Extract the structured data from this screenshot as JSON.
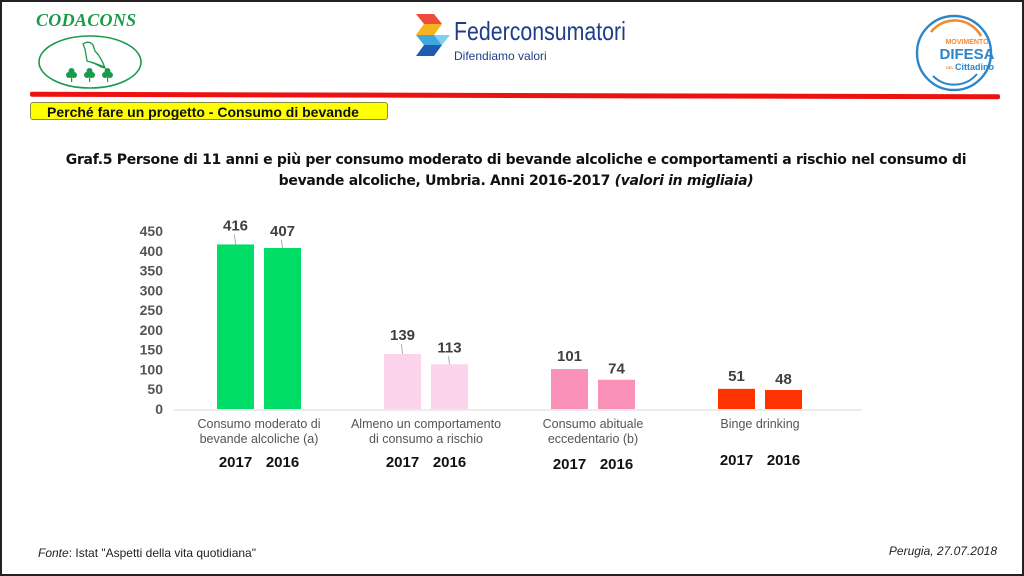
{
  "header": {
    "codacons_title": "CODACONS",
    "federconsumatori_name": "Federconsumatori",
    "federconsumatori_tagline": "Difendiamo valori",
    "mdc_line1": "MOVIMENTO",
    "mdc_line2": "DIFESA",
    "mdc_line3_prefix": "DEL",
    "mdc_line3": "Cittadino"
  },
  "section_label": "Perché fare un progetto  - Consumo di bevande",
  "chart_title_main": "Graf.5 Persone di 11 anni e più per consumo moderato di bevande alcoliche  e comportamenti a rischio nel consumo di bevande alcoliche, Umbria.  Anni 2016-2017 ",
  "chart_title_note": "(valori in migliaia)",
  "colors": {
    "green": "#00dd66",
    "light_pink": "#fbd3ea",
    "pink": "#f991b9",
    "red": "#ff3300",
    "accent_red_line": "#ee1111",
    "label_yellow": "#ffff00"
  },
  "chart_data": {
    "type": "bar",
    "title": "Graf.5 Persone di 11 anni e più per consumo moderato di bevande alcoliche e comportamenti a rischio nel consumo di bevande alcoliche, Umbria. Anni 2016-2017 (valori in migliaia)",
    "xlabel": "",
    "ylabel": "",
    "ylim": [
      0,
      450
    ],
    "yticks": [
      0,
      50,
      100,
      150,
      200,
      250,
      300,
      350,
      400,
      450
    ],
    "grid": false,
    "legend": "none",
    "categories": [
      {
        "label_lines": [
          "Consumo moderato di",
          "bevande alcoliche (a)"
        ],
        "color": "#00dd66"
      },
      {
        "label_lines": [
          "Almeno un comportamento",
          "di consumo a rischio"
        ],
        "color": "#fbd3ea"
      },
      {
        "label_lines": [
          "Consumo abituale",
          "eccedentario (b)"
        ],
        "color": "#f991b9"
      },
      {
        "label_lines": [
          "Binge drinking"
        ],
        "color": "#ff3300"
      }
    ],
    "series": [
      {
        "name": "2017",
        "values": [
          416,
          139,
          101,
          51
        ]
      },
      {
        "name": "2016",
        "values": [
          407,
          113,
          74,
          48
        ]
      }
    ]
  },
  "footer": {
    "source_label": "Fonte",
    "source_text": ": Istat \"Aspetti della vita quotidiana\"",
    "place_date": "Perugia, 27.07.2018"
  }
}
